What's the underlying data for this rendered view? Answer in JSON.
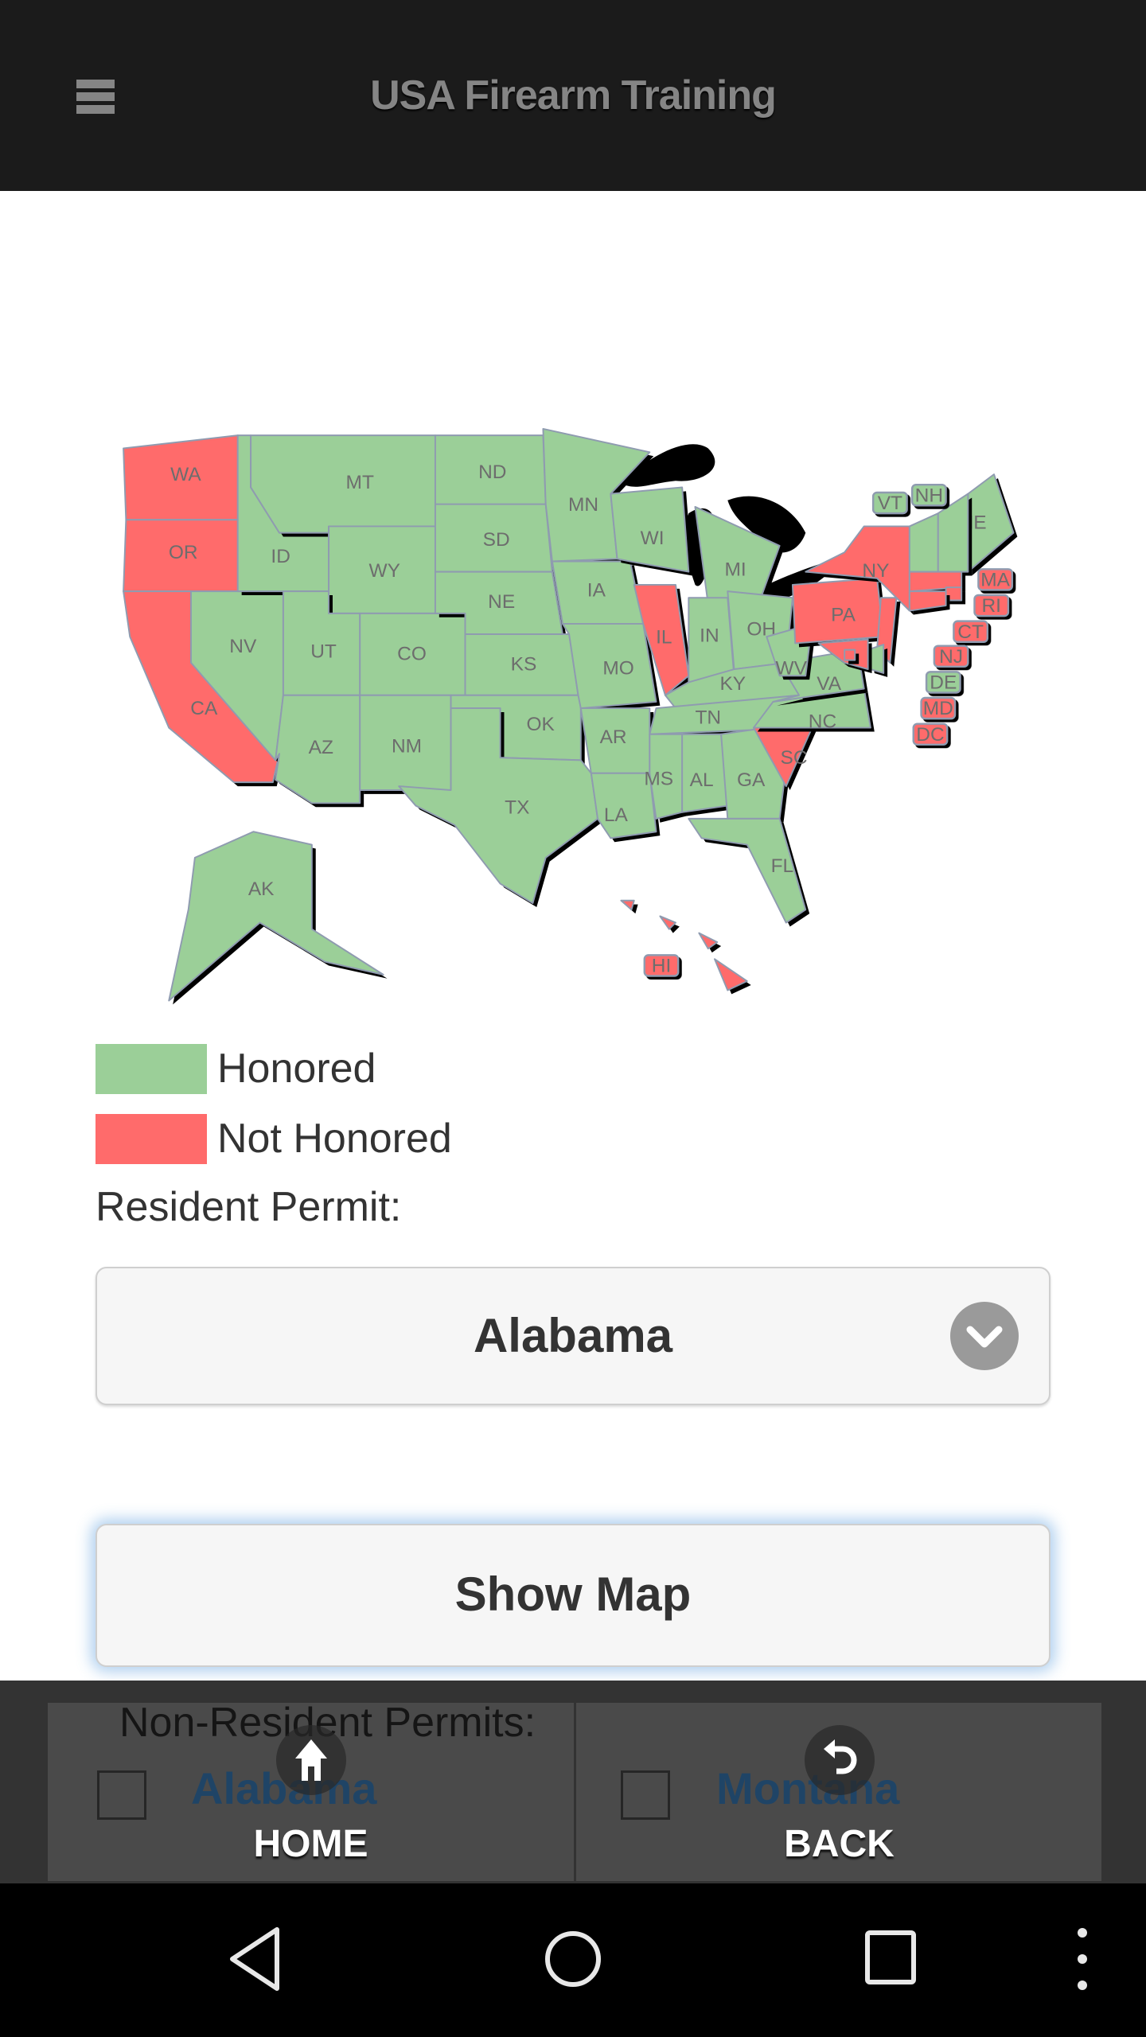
{
  "header": {
    "title": "USA Firearm Training",
    "menu_icon": "hamburger-menu-icon"
  },
  "map": {
    "colors": {
      "honored": "#9bcf98",
      "not_honored": "#ff6b6b",
      "border": "#8f9bb0",
      "lakes": "#000000"
    },
    "states": [
      {
        "abbr": "WA",
        "status": "not_honored"
      },
      {
        "abbr": "OR",
        "status": "not_honored"
      },
      {
        "abbr": "CA",
        "status": "not_honored"
      },
      {
        "abbr": "NV",
        "status": "honored"
      },
      {
        "abbr": "ID",
        "status": "honored"
      },
      {
        "abbr": "MT",
        "status": "honored"
      },
      {
        "abbr": "WY",
        "status": "honored"
      },
      {
        "abbr": "UT",
        "status": "honored"
      },
      {
        "abbr": "CO",
        "status": "honored"
      },
      {
        "abbr": "AZ",
        "status": "honored"
      },
      {
        "abbr": "NM",
        "status": "honored"
      },
      {
        "abbr": "ND",
        "status": "honored"
      },
      {
        "abbr": "SD",
        "status": "honored"
      },
      {
        "abbr": "NE",
        "status": "honored"
      },
      {
        "abbr": "KS",
        "status": "honored"
      },
      {
        "abbr": "OK",
        "status": "honored"
      },
      {
        "abbr": "TX",
        "status": "honored"
      },
      {
        "abbr": "MN",
        "status": "honored"
      },
      {
        "abbr": "IA",
        "status": "honored"
      },
      {
        "abbr": "MO",
        "status": "honored"
      },
      {
        "abbr": "AR",
        "status": "honored"
      },
      {
        "abbr": "LA",
        "status": "honored"
      },
      {
        "abbr": "WI",
        "status": "honored"
      },
      {
        "abbr": "IL",
        "status": "not_honored"
      },
      {
        "abbr": "MI",
        "status": "honored"
      },
      {
        "abbr": "IN",
        "status": "honored"
      },
      {
        "abbr": "OH",
        "status": "honored"
      },
      {
        "abbr": "KY",
        "status": "honored"
      },
      {
        "abbr": "TN",
        "status": "honored"
      },
      {
        "abbr": "MS",
        "status": "honored"
      },
      {
        "abbr": "AL",
        "status": "honored"
      },
      {
        "abbr": "GA",
        "status": "honored"
      },
      {
        "abbr": "FL",
        "status": "honored"
      },
      {
        "abbr": "SC",
        "status": "not_honored"
      },
      {
        "abbr": "NC",
        "status": "honored"
      },
      {
        "abbr": "VA",
        "status": "honored"
      },
      {
        "abbr": "WV",
        "status": "honored"
      },
      {
        "abbr": "PA",
        "status": "not_honored"
      },
      {
        "abbr": "NY",
        "status": "not_honored"
      },
      {
        "abbr": "ME",
        "status": "honored"
      },
      {
        "abbr": "AK",
        "status": "honored"
      },
      {
        "abbr": "HI",
        "status": "not_honored"
      },
      {
        "abbr": "VT",
        "status": "honored"
      },
      {
        "abbr": "NH",
        "status": "honored"
      },
      {
        "abbr": "MA",
        "status": "not_honored"
      },
      {
        "abbr": "RI",
        "status": "not_honored"
      },
      {
        "abbr": "CT",
        "status": "not_honored"
      },
      {
        "abbr": "NJ",
        "status": "not_honored"
      },
      {
        "abbr": "DE",
        "status": "honored"
      },
      {
        "abbr": "MD",
        "status": "not_honored"
      },
      {
        "abbr": "DC",
        "status": "not_honored"
      }
    ]
  },
  "legend": {
    "honored": "Honored",
    "not_honored": "Not Honored"
  },
  "resident": {
    "label": "Resident Permit:",
    "selected": "Alabama",
    "dropdown_icon": "chevron-down-icon"
  },
  "show_map_label": "Show Map",
  "non_resident": {
    "label": "Non-Resident Permits:",
    "options": [
      {
        "label": "Alabama",
        "checked": false
      },
      {
        "label": "Montana",
        "checked": false
      }
    ]
  },
  "footer_nav": {
    "home": "HOME",
    "back": "BACK",
    "home_icon": "home-icon",
    "back_icon": "undo-icon"
  },
  "android_nav": [
    "back-triangle-icon",
    "home-circle-icon",
    "recents-square-icon",
    "overflow-dots-icon"
  ]
}
